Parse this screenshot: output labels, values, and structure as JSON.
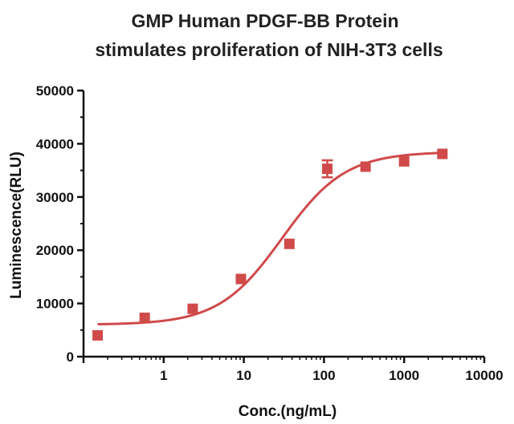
{
  "chart_data": {
    "type": "scatter",
    "title": [
      "GMP Human PDGF-BB Protein",
      "stimulates proliferation of NIH-3T3 cells"
    ],
    "xlabel": "Conc.(ng/mL)",
    "ylabel": "Luminescence(RLU)",
    "xscale": "log",
    "xlim": [
      0.1,
      10000
    ],
    "ylim": [
      0,
      50000
    ],
    "xticks": [
      1,
      10,
      100,
      1000,
      10000
    ],
    "xtick_labels": [
      "1",
      "10",
      "100",
      "1000",
      "10000"
    ],
    "yticks": [
      0,
      10000,
      20000,
      30000,
      40000,
      50000
    ],
    "ytick_labels": [
      "0",
      "10000",
      "20000",
      "30000",
      "40000",
      "50000"
    ],
    "series": [
      {
        "name": "PDGF-BB",
        "color": "#d04a4a",
        "x": [
          0.15,
          0.58,
          2.3,
          9.2,
          37,
          110,
          330,
          1000,
          3000
        ],
        "y": [
          4000,
          7300,
          9000,
          14600,
          21200,
          35300,
          35700,
          36700,
          38100
        ],
        "error": [
          0,
          0,
          0,
          0,
          0,
          1600,
          0,
          0,
          0
        ]
      }
    ],
    "fit": {
      "type": "4PL",
      "bottom": 6000,
      "top": 38500,
      "ec50": 30,
      "hill": 1.1,
      "color": "#d04a4a"
    },
    "grid": false,
    "legend": "none"
  }
}
